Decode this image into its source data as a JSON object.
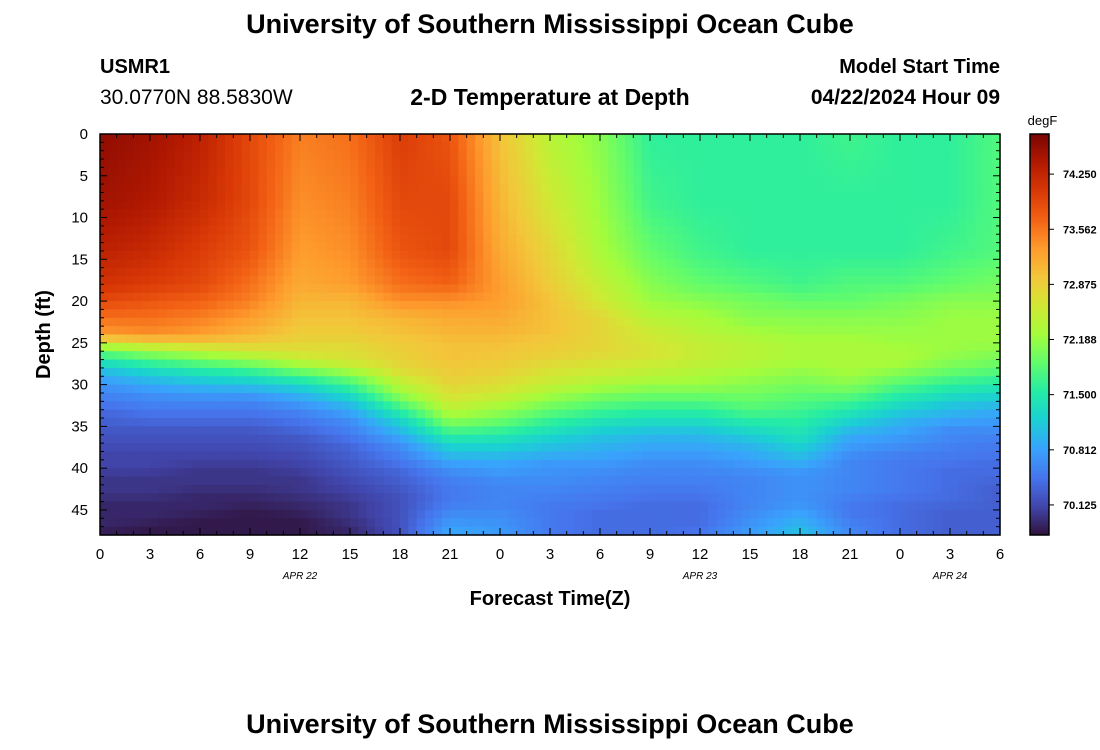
{
  "header": {
    "title": "University of Southern Mississippi Ocean Cube",
    "station_id": "USMR1",
    "station_coords": "30.0770N  88.5830W",
    "subtitle": "2-D Temperature at Depth",
    "model_start_label": "Model Start Time",
    "model_start_value": "04/22/2024 Hour 09"
  },
  "footer": {
    "title": "University of Southern Mississippi Ocean Cube"
  },
  "chart_data": {
    "type": "heatmap",
    "xlabel": "Forecast Time(Z)",
    "ylabel": "Depth (ft)",
    "x_range_hours": [
      0,
      54
    ],
    "x_ticks": [
      {
        "h": 0,
        "label": "0"
      },
      {
        "h": 3,
        "label": "3"
      },
      {
        "h": 6,
        "label": "6"
      },
      {
        "h": 9,
        "label": "9"
      },
      {
        "h": 12,
        "label": "12"
      },
      {
        "h": 15,
        "label": "15"
      },
      {
        "h": 18,
        "label": "18"
      },
      {
        "h": 21,
        "label": "21"
      },
      {
        "h": 24,
        "label": "0"
      },
      {
        "h": 27,
        "label": "3"
      },
      {
        "h": 30,
        "label": "6"
      },
      {
        "h": 33,
        "label": "9"
      },
      {
        "h": 36,
        "label": "12"
      },
      {
        "h": 39,
        "label": "15"
      },
      {
        "h": 42,
        "label": "18"
      },
      {
        "h": 45,
        "label": "21"
      },
      {
        "h": 48,
        "label": "0"
      },
      {
        "h": 51,
        "label": "3"
      },
      {
        "h": 54,
        "label": "6"
      }
    ],
    "date_labels": [
      {
        "h": 12,
        "label": "APR 22"
      },
      {
        "h": 36,
        "label": "APR 23"
      },
      {
        "h": 51,
        "label": "APR 24"
      }
    ],
    "y_range": [
      0,
      48
    ],
    "y_ticks": [
      0,
      5,
      10,
      15,
      20,
      25,
      30,
      35,
      40,
      45
    ],
    "colorbar": {
      "unit": "degF",
      "range": [
        69.75,
        74.75
      ],
      "ticks": [
        "74.250",
        "73.562",
        "72.875",
        "72.188",
        "71.500",
        "70.812",
        "70.125"
      ],
      "colors": [
        "#30123b",
        "#4145ab",
        "#4675ed",
        "#39a2fc",
        "#1bcfd4",
        "#24eca6",
        "#61fc6c",
        "#a4fc3b",
        "#d1e834",
        "#f3c63a",
        "#fe9b2d",
        "#f36315",
        "#d93806",
        "#b11901",
        "#7a0403"
      ]
    },
    "depth_profile_ft": [
      0,
      8,
      14,
      18,
      20,
      22,
      24,
      25,
      26,
      27,
      28,
      29,
      30,
      31,
      32,
      33,
      34,
      35,
      36,
      37,
      38,
      39,
      40,
      41,
      42,
      43,
      44,
      45,
      46,
      47,
      48
    ],
    "time_hours": [
      0,
      3,
      6,
      9,
      12,
      15,
      18,
      21,
      24,
      27,
      30,
      33,
      36,
      39,
      42,
      45,
      48,
      51,
      54
    ],
    "temperature_degF": [
      [
        74.6,
        74.5,
        74.3,
        73.9,
        73.5,
        73.6,
        74.0,
        73.8,
        73.0,
        72.4,
        72.1,
        71.6,
        71.6,
        71.6,
        71.6,
        71.7,
        71.6,
        71.6,
        71.8
      ],
      [
        74.5,
        74.4,
        74.2,
        73.9,
        73.4,
        73.5,
        73.9,
        73.9,
        73.1,
        72.6,
        72.2,
        71.7,
        71.6,
        71.6,
        71.6,
        71.6,
        71.6,
        71.6,
        71.8
      ],
      [
        74.3,
        74.2,
        74.0,
        73.8,
        73.3,
        73.4,
        73.8,
        73.9,
        73.2,
        72.8,
        72.3,
        71.9,
        71.7,
        71.6,
        71.6,
        71.6,
        71.6,
        71.7,
        71.8
      ],
      [
        74.1,
        74.0,
        73.9,
        73.6,
        73.2,
        73.3,
        73.6,
        73.7,
        73.3,
        72.9,
        72.5,
        72.1,
        71.9,
        71.8,
        71.7,
        71.8,
        71.8,
        71.9,
        72.0
      ],
      [
        73.9,
        73.8,
        73.7,
        73.5,
        73.1,
        73.1,
        73.4,
        73.4,
        73.3,
        73.0,
        72.6,
        72.2,
        72.1,
        72.0,
        71.9,
        71.9,
        72.0,
        72.1,
        72.1
      ],
      [
        73.6,
        73.6,
        73.5,
        73.3,
        73.0,
        73.0,
        73.1,
        73.2,
        73.2,
        73.0,
        72.8,
        72.4,
        72.3,
        72.1,
        72.1,
        72.1,
        72.1,
        72.2,
        72.2
      ],
      [
        73.3,
        73.4,
        73.3,
        73.1,
        72.9,
        72.9,
        73.0,
        73.1,
        73.1,
        73.0,
        72.8,
        72.6,
        72.4,
        72.3,
        72.2,
        72.2,
        72.2,
        72.2,
        72.2
      ],
      [
        72.6,
        72.8,
        72.9,
        72.9,
        72.8,
        72.8,
        72.9,
        73.0,
        73.0,
        72.9,
        72.8,
        72.6,
        72.5,
        72.4,
        72.3,
        72.3,
        72.2,
        72.2,
        72.2
      ],
      [
        71.9,
        72.2,
        72.4,
        72.6,
        72.7,
        72.7,
        72.9,
        73.0,
        73.0,
        72.9,
        72.8,
        72.7,
        72.5,
        72.4,
        72.3,
        72.3,
        72.3,
        72.2,
        72.1
      ],
      [
        71.5,
        71.8,
        72.0,
        72.2,
        72.5,
        72.7,
        72.8,
        73.0,
        72.9,
        72.8,
        72.7,
        72.6,
        72.5,
        72.4,
        72.3,
        72.3,
        72.3,
        72.1,
        72.0
      ],
      [
        71.1,
        71.4,
        71.6,
        71.8,
        72.1,
        72.4,
        72.8,
        72.9,
        72.9,
        72.7,
        72.6,
        72.5,
        72.4,
        72.3,
        72.2,
        72.3,
        72.2,
        72.0,
        71.9
      ],
      [
        70.9,
        71.1,
        71.3,
        71.4,
        71.7,
        72.0,
        72.6,
        72.9,
        72.8,
        72.6,
        72.5,
        72.4,
        72.3,
        72.2,
        72.1,
        72.2,
        72.0,
        71.8,
        71.7
      ],
      [
        70.7,
        70.9,
        71.0,
        71.1,
        71.3,
        71.7,
        72.4,
        72.8,
        72.7,
        72.5,
        72.3,
        72.2,
        72.2,
        72.1,
        72.0,
        72.1,
        71.8,
        71.6,
        71.5
      ],
      [
        70.6,
        70.7,
        70.8,
        70.8,
        71.0,
        71.4,
        72.2,
        72.7,
        72.6,
        72.3,
        72.1,
        72.0,
        72.0,
        72.0,
        71.9,
        71.9,
        71.6,
        71.4,
        71.3
      ],
      [
        70.5,
        70.6,
        70.6,
        70.6,
        70.8,
        71.1,
        71.9,
        72.6,
        72.4,
        72.1,
        71.9,
        71.8,
        71.8,
        71.9,
        71.8,
        71.7,
        71.4,
        71.2,
        71.1
      ],
      [
        70.4,
        70.5,
        70.5,
        70.5,
        70.6,
        70.9,
        71.6,
        72.4,
        72.2,
        71.9,
        71.7,
        71.6,
        71.6,
        71.8,
        71.7,
        71.5,
        71.2,
        71.0,
        70.9
      ],
      [
        70.3,
        70.4,
        70.4,
        70.4,
        70.5,
        70.7,
        71.3,
        72.2,
        72.0,
        71.7,
        71.5,
        71.4,
        71.4,
        71.6,
        71.6,
        71.3,
        71.0,
        70.9,
        70.8
      ],
      [
        70.3,
        70.3,
        70.3,
        70.3,
        70.4,
        70.6,
        71.1,
        71.9,
        71.8,
        71.5,
        71.3,
        71.2,
        71.2,
        71.4,
        71.5,
        71.1,
        70.9,
        70.7,
        70.7
      ],
      [
        70.2,
        70.2,
        70.2,
        70.2,
        70.3,
        70.5,
        70.9,
        71.6,
        71.5,
        71.3,
        71.1,
        71.0,
        71.0,
        71.2,
        71.4,
        70.9,
        70.8,
        70.6,
        70.6
      ],
      [
        70.2,
        70.2,
        70.2,
        70.2,
        70.2,
        70.4,
        70.7,
        71.3,
        71.3,
        71.1,
        71.0,
        70.9,
        70.9,
        71.0,
        71.3,
        70.8,
        70.7,
        70.6,
        70.5
      ],
      [
        70.1,
        70.1,
        70.1,
        70.1,
        70.2,
        70.3,
        70.6,
        71.1,
        71.1,
        71.0,
        70.9,
        70.8,
        70.8,
        70.9,
        71.1,
        70.7,
        70.6,
        70.5,
        70.5
      ],
      [
        70.1,
        70.1,
        70.1,
        70.1,
        70.1,
        70.3,
        70.5,
        70.9,
        70.9,
        70.8,
        70.8,
        70.7,
        70.7,
        70.8,
        71.0,
        70.6,
        70.5,
        70.5,
        70.4
      ],
      [
        70.1,
        70.1,
        70.0,
        70.0,
        70.1,
        70.2,
        70.4,
        70.7,
        70.8,
        70.7,
        70.7,
        70.6,
        70.6,
        70.7,
        70.8,
        70.6,
        70.5,
        70.4,
        70.4
      ],
      [
        70.0,
        70.0,
        70.0,
        70.0,
        70.0,
        70.2,
        70.3,
        70.6,
        70.7,
        70.7,
        70.6,
        70.6,
        70.6,
        70.6,
        70.7,
        70.6,
        70.5,
        70.4,
        70.4
      ],
      [
        70.0,
        70.0,
        70.0,
        70.0,
        70.0,
        70.1,
        70.3,
        70.5,
        70.6,
        70.6,
        70.6,
        70.5,
        70.5,
        70.6,
        70.7,
        70.6,
        70.5,
        70.4,
        70.3
      ],
      [
        70.0,
        70.0,
        69.9,
        69.9,
        70.0,
        70.1,
        70.2,
        70.5,
        70.6,
        70.6,
        70.5,
        70.5,
        70.5,
        70.6,
        70.7,
        70.6,
        70.5,
        70.4,
        70.3
      ],
      [
        69.9,
        69.9,
        69.9,
        69.9,
        69.9,
        70.0,
        70.2,
        70.5,
        70.6,
        70.5,
        70.5,
        70.4,
        70.4,
        70.6,
        70.7,
        70.5,
        70.4,
        70.4,
        70.3
      ],
      [
        69.9,
        69.9,
        69.9,
        69.8,
        69.9,
        70.0,
        70.2,
        70.6,
        70.6,
        70.5,
        70.4,
        70.4,
        70.4,
        70.6,
        70.8,
        70.5,
        70.4,
        70.3,
        70.3
      ],
      [
        69.9,
        69.9,
        69.8,
        69.8,
        69.8,
        70.0,
        70.2,
        70.7,
        70.7,
        70.5,
        70.4,
        70.4,
        70.4,
        70.7,
        70.9,
        70.5,
        70.4,
        70.3,
        70.3
      ],
      [
        69.9,
        69.8,
        69.8,
        69.8,
        69.8,
        69.9,
        70.2,
        70.8,
        70.7,
        70.5,
        70.4,
        70.4,
        70.4,
        70.7,
        71.0,
        70.6,
        70.4,
        70.3,
        70.3
      ],
      [
        69.8,
        69.8,
        69.8,
        69.8,
        69.8,
        69.9,
        70.2,
        70.9,
        70.8,
        70.5,
        70.4,
        70.4,
        70.5,
        70.8,
        71.1,
        70.6,
        70.4,
        70.3,
        70.3
      ]
    ]
  }
}
